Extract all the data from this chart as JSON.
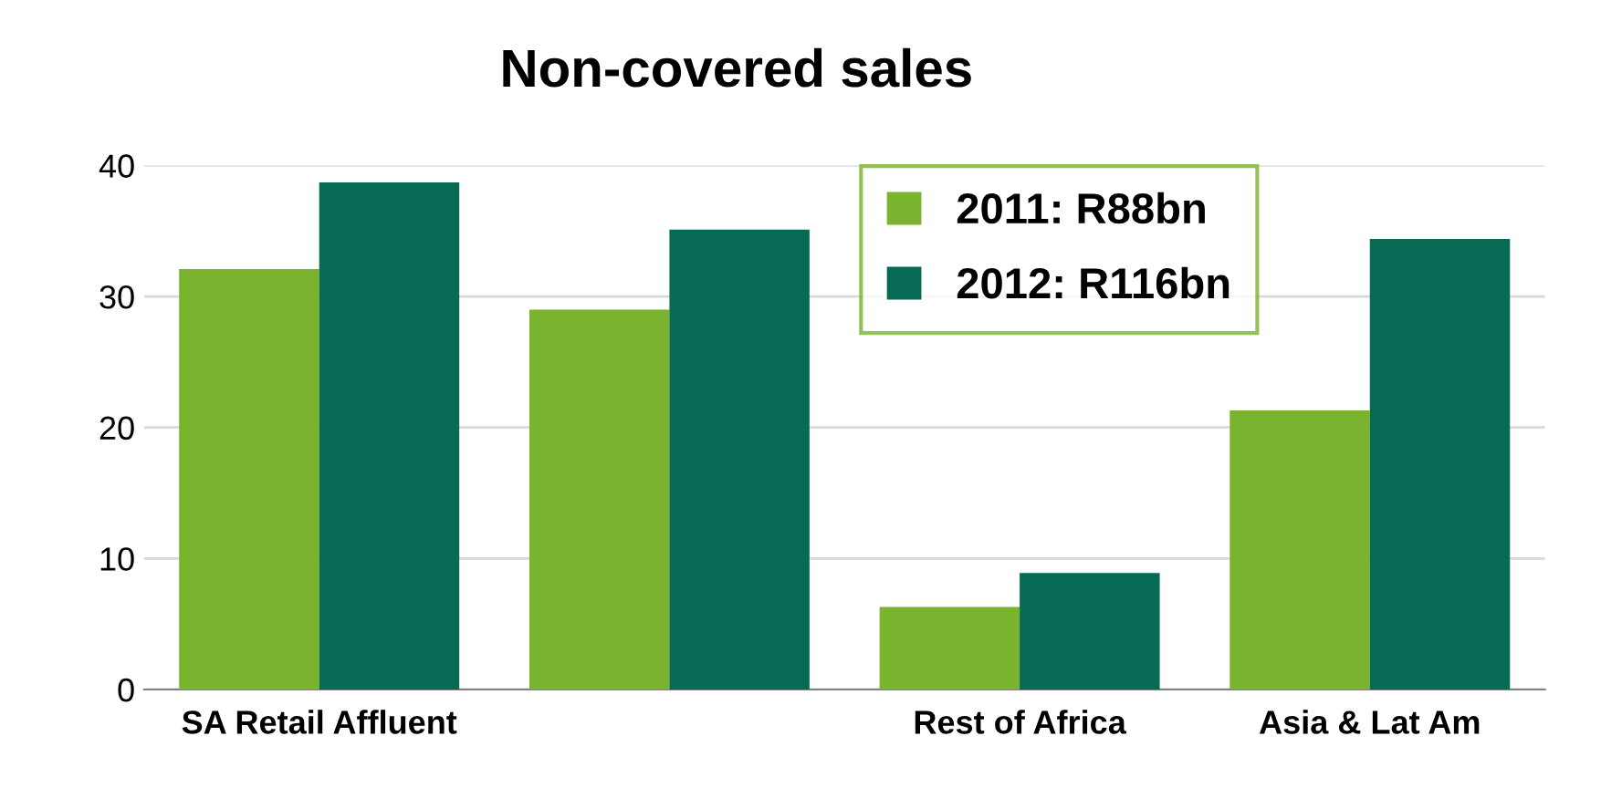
{
  "chart_data": {
    "type": "bar",
    "title": "Non-covered sales",
    "categories": [
      "SA Retail Affluent",
      null,
      "Rest of Africa",
      "Asia & Lat Am"
    ],
    "series": [
      {
        "name": "2011: R88bn",
        "color": "#7ab32e",
        "values": [
          32.1,
          29.0,
          6.3,
          21.3
        ]
      },
      {
        "name": "2012: R116bn",
        "color": "#076a55",
        "values": [
          38.7,
          35.1,
          8.9,
          34.4
        ]
      }
    ],
    "ylim": [
      0,
      40
    ],
    "yticks": [
      0,
      10,
      20,
      30,
      40
    ],
    "grid": "y",
    "legend": "top right"
  }
}
